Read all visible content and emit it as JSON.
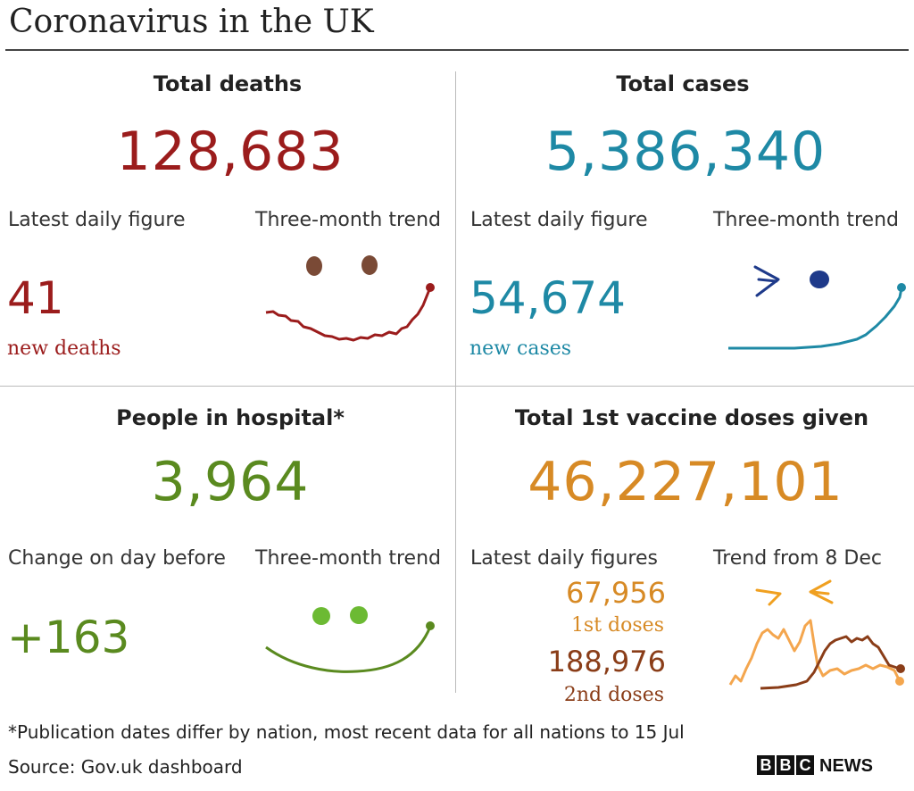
{
  "title": "Coronavirus in the UK",
  "deaths": {
    "heading": "Total deaths",
    "total": "128,683",
    "daily_label": "Latest daily figure",
    "trend_label": "Three-month trend",
    "daily_value": "41",
    "daily_unit": "new deaths"
  },
  "cases": {
    "heading": "Total cases",
    "total": "5,386,340",
    "daily_label": "Latest daily figure",
    "trend_label": "Three-month trend",
    "daily_value": "54,674",
    "daily_unit": "new cases"
  },
  "hospital": {
    "heading": "People in hospital*",
    "total": "3,964",
    "change_label": "Change on day before",
    "trend_label": "Three-month trend",
    "change_value": "+163"
  },
  "vaccine": {
    "heading": "Total 1st vaccine doses given",
    "total": "46,227,101",
    "daily_label": "Latest daily figures",
    "trend_label": "Trend from 8 Dec",
    "first_value": "67,956",
    "first_unit": "1st doses",
    "second_value": "188,976",
    "second_unit": "2nd doses"
  },
  "footnote": "*Publication dates differ by nation, most recent data for all nations to 15 Jul",
  "source": "Source: Gov.uk dashboard",
  "brand": {
    "letters": [
      "B",
      "B",
      "C"
    ],
    "word": "NEWS"
  },
  "colors": {
    "deaths": "#9b1c1c",
    "cases": "#1e89a5",
    "hospital": "#5a8a1f",
    "vaccine_first": "#d78a25",
    "vaccine_second": "#8a3d18"
  }
}
